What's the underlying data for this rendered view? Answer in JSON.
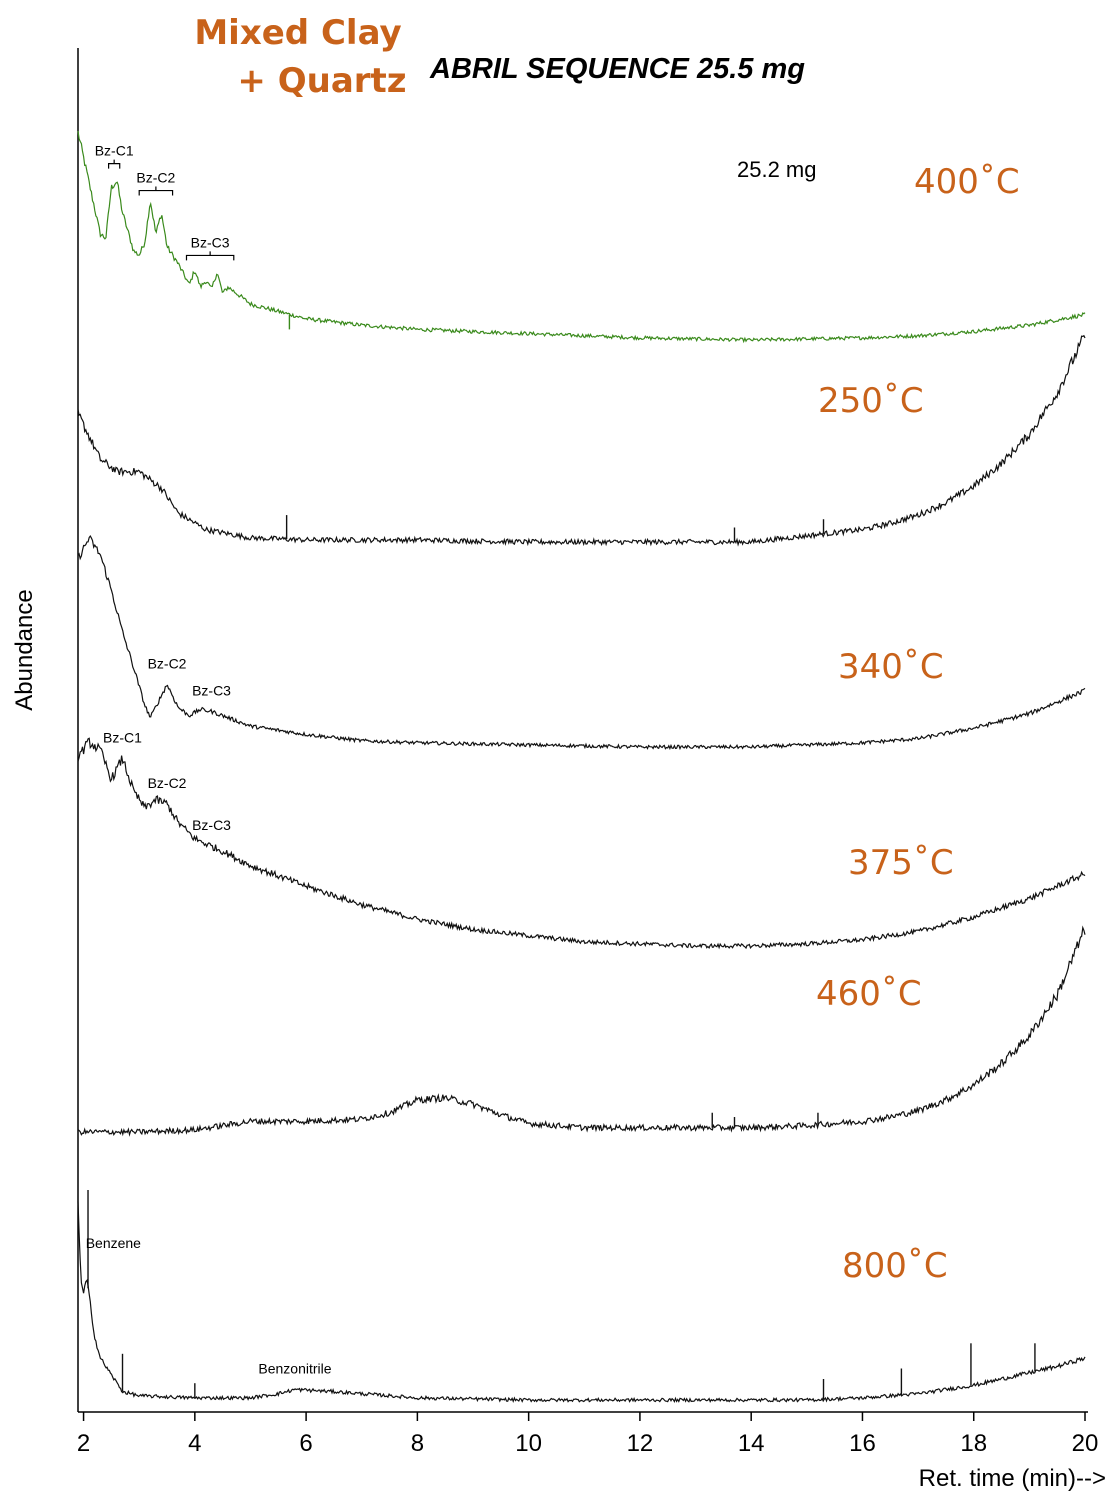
{
  "header": {
    "sample_line1": "Mixed Clay",
    "sample_line2": "+ Quartz",
    "title": "ABRIL SEQUENCE 25.5 mg",
    "mass_note": "25.2 mg"
  },
  "colors": {
    "accent": "#c8621a",
    "trace_400": "#3a8a1c",
    "trace_default": "#111111"
  },
  "chart_data": {
    "type": "line",
    "xlabel": "Ret. time (min)-->",
    "ylabel": "Abundance",
    "xlim": [
      1.9,
      20
    ],
    "x_ticks": [
      "2",
      "4",
      "6",
      "8",
      "10",
      "12",
      "14",
      "16",
      "18",
      "20"
    ],
    "y_scale": "relative abundance, traces vertically offset, no y tick labels",
    "grid": false,
    "series": [
      {
        "name": "400˚C",
        "color": "#3a8a1c",
        "x": [
          1.9,
          2.1,
          2.3,
          2.4,
          2.5,
          2.6,
          2.7,
          2.9,
          3.0,
          3.1,
          3.2,
          3.3,
          3.4,
          3.5,
          3.7,
          3.9,
          4.0,
          4.1,
          4.2,
          4.3,
          4.4,
          4.5,
          4.6,
          5.0,
          6.0,
          7.0,
          8.0,
          10.0,
          12.0,
          14.0,
          16.0,
          17.0,
          18.0,
          19.0,
          20.0
        ],
        "y": [
          0.98,
          0.74,
          0.5,
          0.48,
          0.72,
          0.75,
          0.6,
          0.42,
          0.4,
          0.46,
          0.66,
          0.5,
          0.6,
          0.44,
          0.36,
          0.26,
          0.33,
          0.25,
          0.28,
          0.24,
          0.32,
          0.22,
          0.25,
          0.17,
          0.1,
          0.07,
          0.05,
          0.03,
          0.01,
          0.0,
          0.01,
          0.02,
          0.04,
          0.07,
          0.12
        ],
        "noise": 0.008,
        "spikes": [
          {
            "x": 5.7,
            "y": 0.05
          }
        ],
        "annotations": [
          {
            "label": "Bz-C1",
            "x_from": 2.45,
            "x_to": 2.65
          },
          {
            "label": "Bz-C2",
            "x_from": 3.0,
            "x_to": 3.6
          },
          {
            "label": "Bz-C3",
            "x_from": 3.85,
            "x_to": 4.7
          }
        ]
      },
      {
        "name": "250˚C",
        "color": "#111111",
        "x": [
          1.9,
          2.3,
          2.6,
          3.0,
          3.4,
          3.7,
          4.2,
          5.0,
          6.0,
          8.0,
          10.0,
          12.0,
          14.0,
          15.0,
          16.0,
          16.5,
          17.0,
          17.5,
          18.0,
          18.5,
          19.0,
          19.5,
          20.0
        ],
        "y": [
          0.62,
          0.4,
          0.34,
          0.34,
          0.26,
          0.14,
          0.06,
          0.02,
          0.01,
          0.01,
          0.0,
          0.0,
          0.0,
          0.03,
          0.06,
          0.09,
          0.13,
          0.19,
          0.27,
          0.38,
          0.52,
          0.72,
          1.0
        ],
        "noise": 0.012,
        "spikes": [
          {
            "x": 5.65,
            "y": 0.13
          },
          {
            "x": 13.7,
            "y": 0.07
          },
          {
            "x": 15.3,
            "y": 0.11
          }
        ]
      },
      {
        "name": "340˚C",
        "color": "#111111",
        "x": [
          1.9,
          2.1,
          2.3,
          2.5,
          2.7,
          2.9,
          3.1,
          3.2,
          3.35,
          3.5,
          3.7,
          3.9,
          4.1,
          4.3,
          4.6,
          5.0,
          6.0,
          7.0,
          8.0,
          10.0,
          12.0,
          14.0,
          15.0,
          16.0,
          17.0,
          18.0,
          19.0,
          20.0
        ],
        "y": [
          0.9,
          1.0,
          0.92,
          0.75,
          0.55,
          0.38,
          0.2,
          0.14,
          0.22,
          0.3,
          0.19,
          0.15,
          0.18,
          0.17,
          0.14,
          0.1,
          0.06,
          0.03,
          0.02,
          0.01,
          0.0,
          0.0,
          0.01,
          0.02,
          0.04,
          0.09,
          0.16,
          0.27
        ],
        "noise": 0.008,
        "spikes": [],
        "annotations": [
          {
            "label": "Bz-C2",
            "x": 3.5
          },
          {
            "label": "Bz-C3",
            "x": 4.3
          }
        ]
      },
      {
        "name": "375˚C",
        "color": "#111111",
        "x": [
          1.9,
          2.1,
          2.3,
          2.5,
          2.7,
          2.9,
          3.1,
          3.3,
          3.5,
          3.7,
          4.0,
          4.5,
          5.0,
          6.0,
          7.0,
          8.0,
          9.0,
          10.0,
          11.0,
          12.0,
          13.0,
          14.0,
          15.0,
          16.0,
          17.0,
          18.0,
          19.0,
          20.0
        ],
        "y": [
          0.93,
          1.0,
          0.96,
          0.82,
          0.92,
          0.76,
          0.68,
          0.72,
          0.7,
          0.61,
          0.53,
          0.47,
          0.4,
          0.3,
          0.21,
          0.14,
          0.09,
          0.06,
          0.03,
          0.02,
          0.01,
          0.01,
          0.02,
          0.04,
          0.08,
          0.15,
          0.24,
          0.36
        ],
        "noise": 0.01,
        "spikes": [],
        "annotations": [
          {
            "label": "Bz-C1",
            "x": 2.7
          },
          {
            "label": "Bz-C2",
            "x": 3.5
          },
          {
            "label": "Bz-C3",
            "x": 4.3
          }
        ]
      },
      {
        "name": "460˚C",
        "color": "#111111",
        "x": [
          1.9,
          3.0,
          4.0,
          4.5,
          5.0,
          6.0,
          7.0,
          7.5,
          8.0,
          8.5,
          9.0,
          9.5,
          10.0,
          11.0,
          12.0,
          13.0,
          14.0,
          15.0,
          16.0,
          16.5,
          17.0,
          17.5,
          18.0,
          18.5,
          19.0,
          19.5,
          20.0
        ],
        "y": [
          0.0,
          0.0,
          0.01,
          0.03,
          0.05,
          0.05,
          0.06,
          0.09,
          0.15,
          0.16,
          0.13,
          0.08,
          0.04,
          0.02,
          0.02,
          0.02,
          0.02,
          0.03,
          0.05,
          0.07,
          0.1,
          0.15,
          0.22,
          0.32,
          0.45,
          0.64,
          0.95
        ],
        "noise": 0.013,
        "spikes": [
          {
            "x": 13.3,
            "y": 0.09
          },
          {
            "x": 13.7,
            "y": 0.07
          },
          {
            "x": 15.2,
            "y": 0.09
          }
        ]
      },
      {
        "name": "800˚C",
        "color": "#111111",
        "x": [
          1.9,
          1.95,
          2.0,
          2.05,
          2.1,
          2.2,
          2.3,
          2.5,
          2.7,
          3.0,
          4.0,
          5.0,
          5.5,
          5.8,
          6.5,
          7.0,
          8.0,
          10.0,
          12.0,
          14.0,
          15.0,
          16.0,
          16.5,
          17.0,
          17.5,
          18.0,
          18.5,
          19.0,
          19.5,
          20.0
        ],
        "y": [
          0.95,
          0.58,
          0.5,
          0.58,
          0.5,
          0.3,
          0.2,
          0.12,
          0.04,
          0.02,
          0.01,
          0.01,
          0.03,
          0.05,
          0.04,
          0.03,
          0.01,
          0.0,
          0.0,
          0.0,
          0.0,
          0.01,
          0.02,
          0.03,
          0.05,
          0.07,
          0.1,
          0.13,
          0.16,
          0.2
        ],
        "noise": 0.008,
        "spikes": [
          {
            "x": 2.08,
            "y": 1.0
          },
          {
            "x": 2.7,
            "y": 0.22
          },
          {
            "x": 4.0,
            "y": 0.08
          },
          {
            "x": 15.3,
            "y": 0.1
          },
          {
            "x": 16.7,
            "y": 0.15
          },
          {
            "x": 17.95,
            "y": 0.27
          },
          {
            "x": 19.1,
            "y": 0.27
          }
        ],
        "annotations": [
          {
            "label": "Benzene",
            "x": 2.05
          },
          {
            "label": "Benzonitrile",
            "x": 5.8
          }
        ]
      }
    ]
  }
}
